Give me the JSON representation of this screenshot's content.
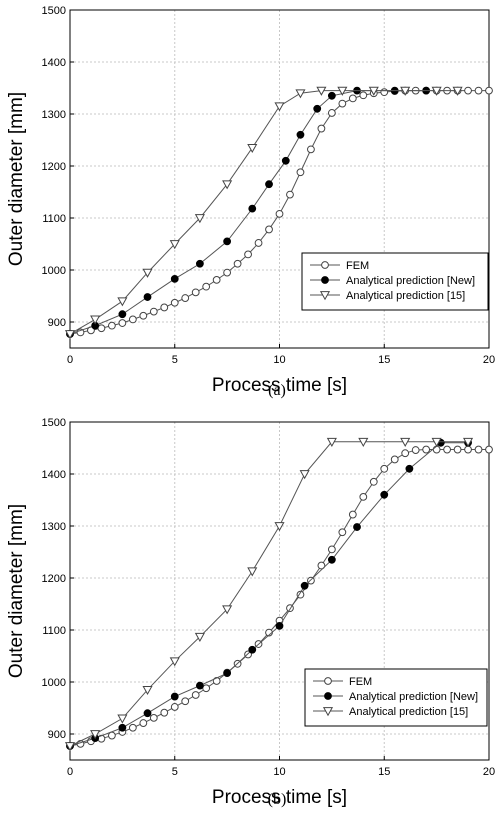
{
  "chart_data": [
    {
      "type": "line",
      "caption": "(a)",
      "xlabel": "Process time [s]",
      "ylabel": "Outer diameter [mm]",
      "xlim": [
        0,
        20
      ],
      "ylim": [
        850,
        1500
      ],
      "xticks": [
        0,
        5,
        10,
        15,
        20
      ],
      "yticks": [
        900,
        1000,
        1100,
        1200,
        1300,
        1400,
        1500
      ],
      "grid": true,
      "legend_position": "bottom-right",
      "series": [
        {
          "name": "FEM",
          "marker": "open-circle",
          "x": [
            0,
            0.5,
            1,
            1.5,
            2,
            2.5,
            3,
            3.5,
            4,
            4.5,
            5,
            5.5,
            6,
            6.5,
            7,
            7.5,
            8,
            8.5,
            9,
            9.5,
            10,
            10.5,
            11,
            11.5,
            12,
            12.5,
            13,
            13.5,
            14,
            14.5,
            15,
            15.5,
            16,
            16.5,
            17,
            17.5,
            18,
            18.5,
            19,
            19.5,
            20
          ],
          "y": [
            877,
            880,
            884,
            888,
            893,
            898,
            905,
            912,
            920,
            928,
            937,
            946,
            957,
            968,
            981,
            995,
            1012,
            1030,
            1052,
            1078,
            1108,
            1145,
            1188,
            1232,
            1272,
            1302,
            1320,
            1330,
            1336,
            1340,
            1342,
            1344,
            1345,
            1345,
            1345,
            1345,
            1345,
            1345,
            1345,
            1345,
            1345
          ]
        },
        {
          "name": "Analytical prediction [New]",
          "marker": "filled-circle",
          "x": [
            0,
            1.2,
            2.5,
            3.7,
            5,
            6.2,
            7.5,
            8.7,
            9.5,
            10.3,
            11,
            11.8,
            12.5,
            13.7,
            15.5,
            17
          ],
          "y": [
            877,
            893,
            915,
            948,
            983,
            1012,
            1055,
            1118,
            1165,
            1210,
            1260,
            1310,
            1335,
            1345,
            1345,
            1345
          ]
        },
        {
          "name": "Analytical prediction [15]",
          "marker": "open-triangle-down",
          "x": [
            0,
            1.2,
            2.5,
            3.7,
            5,
            6.2,
            7.5,
            8.7,
            10,
            11,
            12,
            13,
            14.5,
            16,
            17.5,
            18.5
          ],
          "y": [
            877,
            905,
            940,
            995,
            1050,
            1100,
            1165,
            1235,
            1315,
            1340,
            1345,
            1345,
            1345,
            1345,
            1345,
            1345
          ]
        }
      ]
    },
    {
      "type": "line",
      "caption": "(b)",
      "xlabel": "Process time [s]",
      "ylabel": "Outer diameter [mm]",
      "xlim": [
        0,
        20
      ],
      "ylim": [
        850,
        1500
      ],
      "xticks": [
        0,
        5,
        10,
        15,
        20
      ],
      "yticks": [
        900,
        1000,
        1100,
        1200,
        1300,
        1400,
        1500
      ],
      "grid": true,
      "legend_position": "bottom-right",
      "series": [
        {
          "name": "FEM",
          "marker": "open-circle",
          "x": [
            0,
            0.5,
            1,
            1.5,
            2,
            2.5,
            3,
            3.5,
            4,
            4.5,
            5,
            5.5,
            6,
            6.5,
            7,
            7.5,
            8,
            8.5,
            9,
            9.5,
            10,
            10.5,
            11,
            11.5,
            12,
            12.5,
            13,
            13.5,
            14,
            14.5,
            15,
            15.5,
            16,
            16.5,
            17,
            17.5,
            18,
            18.5,
            19,
            19.5,
            20
          ],
          "y": [
            877,
            881,
            886,
            891,
            897,
            904,
            912,
            921,
            931,
            941,
            952,
            963,
            975,
            988,
            1002,
            1018,
            1035,
            1053,
            1073,
            1095,
            1118,
            1142,
            1168,
            1195,
            1224,
            1255,
            1288,
            1322,
            1356,
            1385,
            1410,
            1428,
            1440,
            1446,
            1447,
            1447,
            1447,
            1447,
            1447,
            1447,
            1447
          ]
        },
        {
          "name": "Analytical prediction [New]",
          "marker": "filled-circle",
          "x": [
            0,
            1.2,
            2.5,
            3.7,
            5,
            6.2,
            7.5,
            8.7,
            10,
            11.2,
            12.5,
            13.7,
            15,
            16.2,
            17.7,
            19
          ],
          "y": [
            877,
            892,
            912,
            940,
            972,
            993,
            1017,
            1062,
            1108,
            1185,
            1235,
            1298,
            1360,
            1410,
            1460,
            1460
          ]
        },
        {
          "name": "Analytical prediction [15]",
          "marker": "open-triangle-down",
          "x": [
            0,
            1.2,
            2.5,
            3.7,
            5,
            6.2,
            7.5,
            8.7,
            10,
            11.2,
            12.5,
            14,
            16,
            17.5,
            19
          ],
          "y": [
            877,
            900,
            930,
            985,
            1040,
            1087,
            1140,
            1213,
            1300,
            1400,
            1462,
            1462,
            1462,
            1462,
            1462
          ]
        }
      ]
    }
  ]
}
